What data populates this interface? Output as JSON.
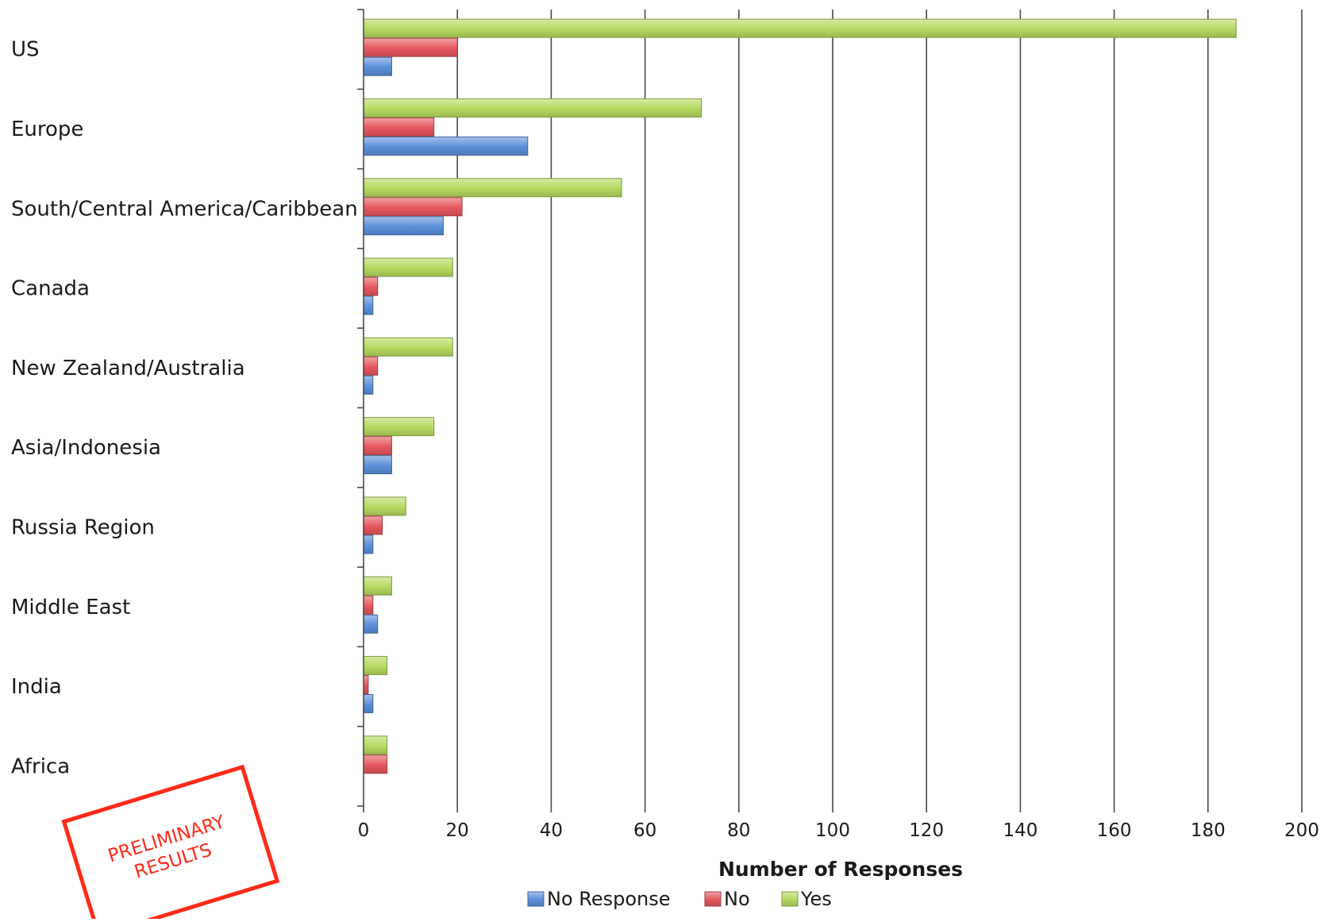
{
  "chart_data": {
    "type": "bar",
    "orientation": "horizontal",
    "title": "",
    "xlabel": "Number of Responses",
    "ylabel": "",
    "xlim": [
      0,
      200
    ],
    "x_ticks": [
      0,
      20,
      40,
      60,
      80,
      100,
      120,
      140,
      160,
      180,
      200
    ],
    "grid": "vertical-major",
    "legend_position": "bottom",
    "categories": [
      "US",
      "Europe",
      "South/Central America/Caribbean",
      "Canada",
      "New Zealand/Australia",
      "Asia/Indonesia",
      "Russia Region",
      "Middle East",
      "India",
      "Africa"
    ],
    "series": [
      {
        "name": "No Response",
        "color": "#5b8fd9",
        "values": [
          6,
          35,
          17,
          2,
          2,
          6,
          2,
          3,
          2,
          0
        ]
      },
      {
        "name": "No",
        "color": "#e5575d",
        "values": [
          20,
          15,
          21,
          3,
          3,
          6,
          4,
          2,
          1,
          5
        ]
      },
      {
        "name": "Yes",
        "color": "#b5d95e",
        "values": [
          186,
          72,
          55,
          19,
          19,
          15,
          9,
          6,
          5,
          5
        ]
      }
    ]
  },
  "stamp": {
    "line1": "PRELIMINARY",
    "line2": "RESULTS",
    "color": "#ff2a1a"
  }
}
